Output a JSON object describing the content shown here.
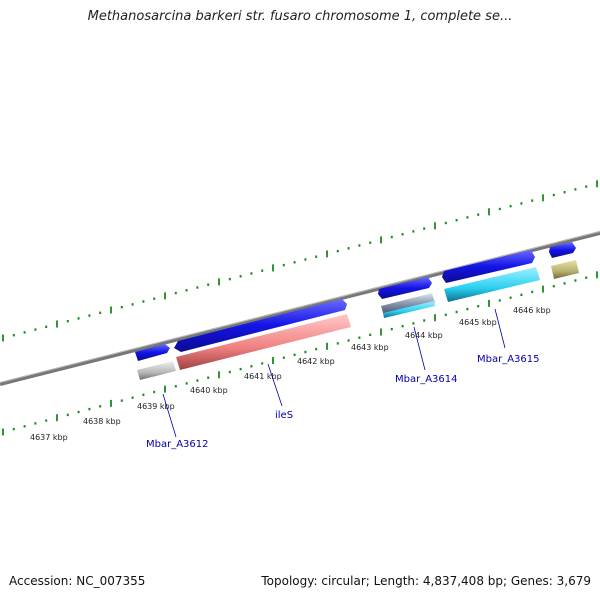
{
  "title": "Methanosarcina barkeri str. fusaro chromosome 1, complete se...",
  "footer": {
    "accession": "Accession: NC_007355",
    "summary": "Topology: circular; Length: 4,837,408 bp; Genes: 3,679"
  },
  "colors": {
    "backbone": "#7f7f7f",
    "ruler": "#1a8a1a",
    "cds_forward": "#1414e6",
    "cds_reverse_ileS": "#f08080",
    "cds_cyan": "#2ad0f0",
    "cds_grey": "#b8b8b8",
    "cds_olive": "#b8b070",
    "label": "#0000aa"
  },
  "ruler_labels": [
    "4637 kbp",
    "4638 kbp",
    "4639 kbp",
    "4640 kbp",
    "4641 kbp",
    "4642 kbp",
    "4643 kbp",
    "4644 kbp",
    "4645 kbp",
    "4646 kbp"
  ],
  "gene_labels": [
    "Mbar_A3612",
    "ileS",
    "Mbar_A3614",
    "Mbar_A3615"
  ]
}
